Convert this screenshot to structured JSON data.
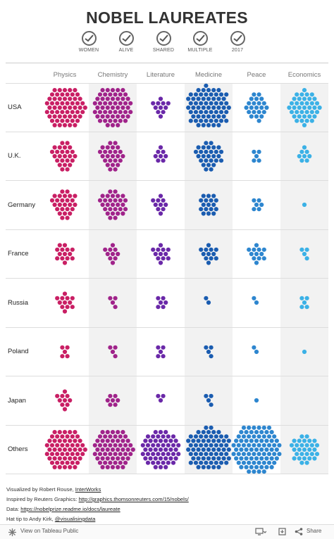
{
  "title": "NOBEL LAUREATES",
  "filters": [
    "WOMEN",
    "ALIVE",
    "SHARED",
    "MULTIPLE",
    "2017"
  ],
  "chart_data": {
    "type": "dot-cluster",
    "categories": [
      "Physics",
      "Chemistry",
      "Literature",
      "Medicine",
      "Peace",
      "Economics"
    ],
    "rows": [
      "USA",
      "U.K.",
      "Germany",
      "France",
      "Russia",
      "Poland",
      "Japan",
      "Others"
    ],
    "colors": [
      "#c91f64",
      "#a0238a",
      "#6a28a8",
      "#1a5cb0",
      "#2d86cf",
      "#3bb1e6"
    ],
    "values": [
      [
        60,
        57,
        11,
        67,
        22,
        39
      ],
      [
        25,
        25,
        8,
        28,
        5,
        8
      ],
      [
        26,
        29,
        10,
        17,
        6,
        1
      ],
      [
        14,
        10,
        12,
        12,
        12,
        4
      ],
      [
        12,
        4,
        6,
        2,
        2,
        5
      ],
      [
        5,
        4,
        5,
        4,
        2,
        1
      ],
      [
        10,
        7,
        3,
        4,
        1,
        0
      ],
      [
        60,
        60,
        55,
        70,
        87,
        30
      ]
    ]
  },
  "footer": {
    "line1_text": "Visualized by Robert Rouse, ",
    "line1_link": "InterWorks",
    "line2_text": "Inspired by Reuters Graphics: ",
    "line2_link": "http://graphics.thomsonreuters.com/15/nobels/",
    "line3_text": "Data: ",
    "line3_link": "https://nobelprize.readme.io/docs/laureate",
    "line4_text": "Hat tip to Andy Kirk, ",
    "line4_link": "@visualisingdata"
  },
  "bottombar": {
    "view_label": "View on Tableau Public",
    "share_label": "Share"
  }
}
